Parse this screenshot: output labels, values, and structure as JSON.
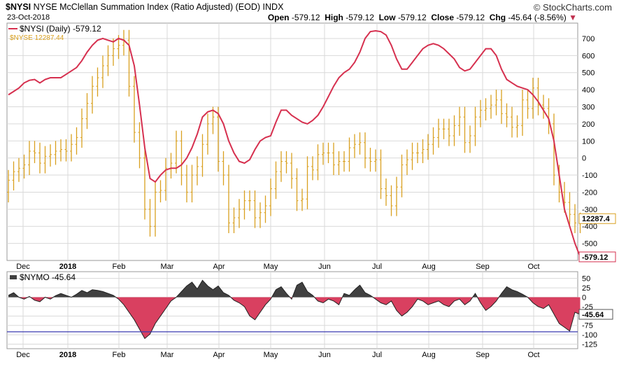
{
  "header": {
    "symbol": "$NYSI",
    "title": "NYSE McClellan Summation Index (Ratio Adjusted) (EOD)",
    "exchange": "INDX",
    "date": "23-Oct-2018",
    "brand": "© StockCharts.com",
    "open_label": "Open",
    "open_value": "-579.12",
    "high_label": "High",
    "high_value": "-579.12",
    "low_label": "Low",
    "low_value": "-579.12",
    "close_label": "Close",
    "close_value": "-579.12",
    "chg_label": "Chg",
    "chg_value": "-45.64 (-8.56%)",
    "chg_arrow": "▼"
  },
  "colors": {
    "nysi_line": "#d6304f",
    "nyse_bars": "#d9a020",
    "nymo_positive": "#404040",
    "nymo_negative": "#d94060",
    "reference_line": "#3b3bb0",
    "grid": "#d9d9d9",
    "axis": "#999999"
  },
  "chart_data": [
    {
      "type": "line",
      "title": "NYSE McClellan Summation Index (Ratio Adjusted) (EOD)",
      "x_ticks": [
        "Dec",
        "2018",
        "Feb",
        "Mar",
        "Apr",
        "May",
        "Jun",
        "Jul",
        "Aug",
        "Sep",
        "Oct"
      ],
      "y_ticks": [
        700,
        600,
        500,
        400,
        300,
        200,
        100,
        0,
        -100,
        -200,
        -300,
        -400,
        -500
      ],
      "ylim": [
        -600,
        790
      ],
      "grid": true,
      "legend_position": "top-left",
      "series": [
        {
          "name": "$NYSI (Daily) -579.12",
          "kind": "line",
          "x_days": [
            0,
            3,
            6,
            9,
            12,
            15,
            18,
            21,
            24,
            27,
            30,
            33,
            36,
            39,
            42,
            45,
            48,
            51,
            54,
            57,
            60,
            63,
            66,
            69,
            72,
            75,
            78,
            81,
            84,
            87,
            90,
            93,
            96,
            99,
            102,
            105,
            108,
            111,
            114,
            117,
            120,
            123,
            126,
            129,
            132,
            135,
            138,
            141,
            144,
            147,
            150,
            153,
            156,
            159,
            162,
            165,
            168,
            171,
            174,
            177,
            180,
            183,
            186,
            189,
            192,
            195,
            198,
            201,
            204,
            207,
            210,
            213,
            216,
            219,
            222,
            225,
            228,
            231,
            234,
            237,
            240,
            243,
            246,
            249,
            252,
            255,
            258,
            261,
            264,
            267,
            270,
            273,
            276,
            279,
            282,
            285,
            288,
            291,
            294,
            297,
            300,
            303,
            306,
            309,
            312,
            315,
            318,
            321,
            324,
            327
          ],
          "values": [
            370,
            390,
            410,
            440,
            455,
            460,
            440,
            460,
            470,
            470,
            470,
            490,
            510,
            530,
            570,
            620,
            660,
            690,
            700,
            690,
            680,
            700,
            690,
            660,
            540,
            310,
            60,
            -120,
            -140,
            -100,
            -70,
            -60,
            -60,
            -40,
            0,
            60,
            140,
            240,
            270,
            280,
            260,
            200,
            100,
            30,
            -20,
            -30,
            -10,
            50,
            100,
            120,
            130,
            210,
            280,
            280,
            250,
            230,
            210,
            200,
            220,
            250,
            300,
            360,
            420,
            470,
            500,
            520,
            560,
            620,
            700,
            740,
            745,
            740,
            720,
            660,
            580,
            520,
            520,
            560,
            600,
            640,
            660,
            670,
            660,
            640,
            610,
            580,
            530,
            510,
            520,
            560,
            600,
            640,
            640,
            600,
            520,
            460,
            440,
            420,
            410,
            400,
            370,
            330,
            280,
            230,
            100,
            -100,
            -300,
            -400,
            -500,
            -579.12
          ],
          "last_label": "-579.12"
        },
        {
          "name": "$NYSE 12287.44",
          "kind": "price-bars (right scale, unlabeled)",
          "x_days": [
            0,
            3,
            6,
            9,
            12,
            15,
            18,
            21,
            24,
            27,
            30,
            33,
            36,
            39,
            42,
            45,
            48,
            51,
            54,
            57,
            60,
            63,
            66,
            69,
            72,
            75,
            78,
            81,
            84,
            87,
            90,
            93,
            96,
            99,
            102,
            105,
            108,
            111,
            114,
            117,
            120,
            123,
            126,
            129,
            132,
            135,
            138,
            141,
            144,
            147,
            150,
            153,
            156,
            159,
            162,
            165,
            168,
            171,
            174,
            177,
            180,
            183,
            186,
            189,
            192,
            195,
            198,
            201,
            204,
            207,
            210,
            213,
            216,
            219,
            222,
            225,
            228,
            231,
            234,
            237,
            240,
            243,
            246,
            249,
            252,
            255,
            258,
            261,
            264,
            267,
            270,
            273,
            276,
            279,
            282,
            285,
            288,
            291,
            294,
            297,
            300,
            303,
            306,
            309,
            312,
            315,
            318,
            321,
            324,
            327
          ],
          "values": [
            -200,
            -130,
            -80,
            -60,
            -40,
            40,
            30,
            -30,
            10,
            20,
            40,
            50,
            40,
            80,
            120,
            230,
            320,
            420,
            470,
            540,
            600,
            640,
            660,
            690,
            420,
            150,
            0,
            -300,
            -400,
            -200,
            -190,
            -60,
            -30,
            100,
            -100,
            -200,
            -100,
            -50,
            80,
            200,
            240,
            -20,
            -100,
            -380,
            -350,
            -300,
            -250,
            -250,
            -350,
            -320,
            -280,
            -180,
            -80,
            -20,
            -30,
            -120,
            -250,
            -240,
            -50,
            -70,
            20,
            30,
            30,
            -40,
            -20,
            -20,
            60,
            80,
            90,
            0,
            -20,
            -10,
            -180,
            -220,
            -280,
            -170,
            -40,
            -10,
            30,
            30,
            50,
            80,
            120,
            170,
            170,
            130,
            190,
            240,
            90,
            130,
            240,
            280,
            290,
            310,
            340,
            260,
            240,
            180,
            190,
            340,
            290,
            410,
            310,
            290,
            200,
            -100,
            -200,
            -260,
            -330,
            -380
          ]
        }
      ],
      "price_label": "12287.4"
    },
    {
      "type": "area",
      "title": "$NYMO -45.64",
      "x_ticks": [
        "Dec",
        "2018",
        "Feb",
        "Mar",
        "Apr",
        "May",
        "Jun",
        "Jul",
        "Aug",
        "Sep",
        "Oct"
      ],
      "y_ticks": [
        50,
        25,
        0,
        -25,
        -50,
        -75,
        -100,
        -125
      ],
      "ylim": [
        -137,
        68
      ],
      "reference_line": -92,
      "grid": true,
      "series": [
        {
          "name": "$NYMO -45.64",
          "x_days": [
            0,
            3,
            6,
            9,
            12,
            15,
            18,
            21,
            24,
            27,
            30,
            33,
            36,
            39,
            42,
            45,
            48,
            51,
            54,
            57,
            60,
            63,
            66,
            69,
            72,
            75,
            78,
            81,
            84,
            87,
            90,
            93,
            96,
            99,
            102,
            105,
            108,
            111,
            114,
            117,
            120,
            123,
            126,
            129,
            132,
            135,
            138,
            141,
            144,
            147,
            150,
            153,
            156,
            159,
            162,
            165,
            168,
            171,
            174,
            177,
            180,
            183,
            186,
            189,
            192,
            195,
            198,
            201,
            204,
            207,
            210,
            213,
            216,
            219,
            222,
            225,
            228,
            231,
            234,
            237,
            240,
            243,
            246,
            249,
            252,
            255,
            258,
            261,
            264,
            267,
            270,
            273,
            276,
            279,
            282,
            285,
            288,
            291,
            294,
            297,
            300,
            303,
            306,
            309,
            312,
            315,
            318,
            321,
            324,
            327
          ],
          "values": [
            5,
            12,
            0,
            -5,
            2,
            -8,
            -12,
            0,
            -5,
            4,
            10,
            5,
            0,
            8,
            18,
            12,
            20,
            18,
            15,
            10,
            5,
            -5,
            -20,
            -40,
            -60,
            -85,
            -110,
            -98,
            -70,
            -50,
            -30,
            -10,
            0,
            15,
            30,
            40,
            22,
            45,
            30,
            20,
            30,
            12,
            5,
            -8,
            -15,
            -25,
            -50,
            -60,
            -40,
            -20,
            -5,
            20,
            28,
            10,
            -5,
            32,
            40,
            15,
            5,
            -10,
            -15,
            -5,
            -10,
            -20,
            10,
            5,
            20,
            32,
            12,
            5,
            -5,
            -15,
            -20,
            -10,
            -35,
            -50,
            -40,
            -25,
            -5,
            -10,
            -20,
            -15,
            -10,
            -20,
            -25,
            -10,
            -5,
            -20,
            -10,
            10,
            -15,
            -35,
            -25,
            -10,
            10,
            28,
            20,
            15,
            8,
            0,
            -15,
            -25,
            -30,
            -20,
            -45,
            -70,
            -80,
            -90,
            -40,
            -45.64
          ],
          "last_label": "-45.64"
        }
      ]
    }
  ]
}
